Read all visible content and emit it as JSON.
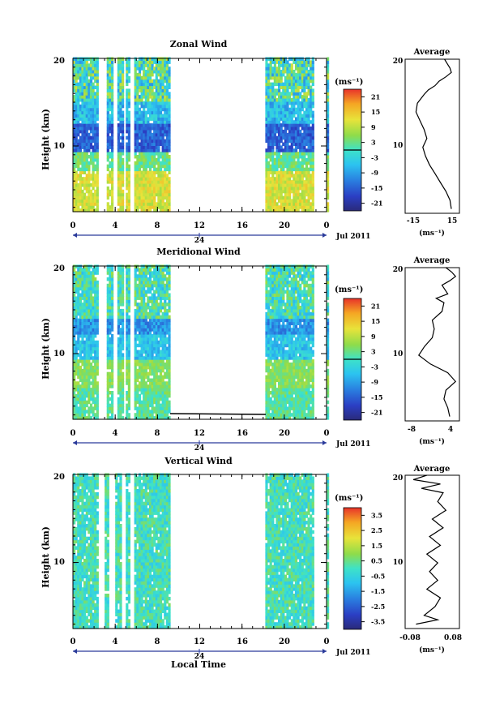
{
  "chart_data": [
    {
      "type": "heatmap",
      "title": "Zonal Wind",
      "ylabel": "Height (km)",
      "yticks": [
        "20",
        "10"
      ],
      "ylim": [
        2.5,
        20
      ],
      "xlim": [
        0,
        24
      ],
      "xticks": [
        "0",
        "4",
        "8",
        "12",
        "16",
        "20",
        "0"
      ],
      "day_label": "24",
      "date_label": "Jul 2011",
      "data_gaps_hours": [
        [
          2.4,
          3.3
        ],
        [
          3.8,
          4.2
        ],
        [
          4.8,
          5.1
        ],
        [
          5.4,
          5.9
        ],
        [
          9.2,
          18.2
        ],
        [
          22.8,
          24
        ]
      ],
      "colorbar": {
        "unit": "(ms⁻¹)",
        "ticks": [
          "21",
          "15",
          "9",
          "3",
          "-3",
          "-9",
          "-15",
          "-21"
        ],
        "range": [
          -24,
          24
        ]
      },
      "average_panel": {
        "title": "Average",
        "xlabel": "(ms⁻¹)",
        "xticks": [
          "-15",
          "15"
        ],
        "xlim": [
          -20,
          20
        ],
        "yticks": [
          "20",
          "10"
        ],
        "profile": [
          {
            "h": 3.0,
            "v": 14
          },
          {
            "h": 4.0,
            "v": 13
          },
          {
            "h": 5.0,
            "v": 10
          },
          {
            "h": 6.0,
            "v": 6
          },
          {
            "h": 7.0,
            "v": 2
          },
          {
            "h": 8.0,
            "v": -2
          },
          {
            "h": 9.0,
            "v": -5
          },
          {
            "h": 10.0,
            "v": -7
          },
          {
            "h": 11.0,
            "v": -4
          },
          {
            "h": 12.0,
            "v": -6
          },
          {
            "h": 13.0,
            "v": -9
          },
          {
            "h": 14.0,
            "v": -12
          },
          {
            "h": 15.0,
            "v": -11
          },
          {
            "h": 16.0,
            "v": -6
          },
          {
            "h": 16.5,
            "v": -3
          },
          {
            "h": 17.0,
            "v": 2
          },
          {
            "h": 17.5,
            "v": 5
          },
          {
            "h": 18.0,
            "v": 10
          },
          {
            "h": 18.5,
            "v": 14
          },
          {
            "h": 19.0,
            "v": 13
          },
          {
            "h": 19.5,
            "v": 11
          },
          {
            "h": 20.0,
            "v": 9
          }
        ]
      }
    },
    {
      "type": "heatmap",
      "title": "Meridional Wind",
      "ylabel": "Height (km)",
      "yticks": [
        "20",
        "10"
      ],
      "ylim": [
        2.5,
        20
      ],
      "xlim": [
        0,
        24
      ],
      "xticks": [
        "0",
        "4",
        "8",
        "12",
        "16",
        "20",
        "0"
      ],
      "day_label": "24",
      "date_label": "Jul 2011",
      "data_gaps_hours": [
        [
          2.4,
          3.3
        ],
        [
          3.8,
          4.2
        ],
        [
          4.8,
          5.1
        ],
        [
          5.4,
          5.9
        ],
        [
          9.2,
          18.2
        ],
        [
          22.8,
          24
        ]
      ],
      "colorbar": {
        "unit": "(ms⁻¹)",
        "ticks": [
          "21",
          "15",
          "9",
          "3",
          "-3",
          "-9",
          "-15",
          "-21"
        ],
        "range": [
          -24,
          24
        ]
      },
      "average_panel": {
        "title": "Average",
        "xlabel": "(ms⁻¹)",
        "xticks": [
          "-8",
          "4"
        ],
        "xlim": [
          -9,
          5
        ],
        "yticks": [
          "20",
          "10"
        ],
        "profile": [
          {
            "h": 3.0,
            "v": 2.5
          },
          {
            "h": 4.0,
            "v": 2.0
          },
          {
            "h": 5.0,
            "v": 1.0
          },
          {
            "h": 6.0,
            "v": 1.5
          },
          {
            "h": 7.0,
            "v": 4.0
          },
          {
            "h": 8.0,
            "v": 2.0
          },
          {
            "h": 9.0,
            "v": -2.5
          },
          {
            "h": 10.0,
            "v": -5.5
          },
          {
            "h": 11.0,
            "v": -4.0
          },
          {
            "h": 12.0,
            "v": -2.0
          },
          {
            "h": 13.0,
            "v": -1.5
          },
          {
            "h": 14.0,
            "v": -2.0
          },
          {
            "h": 15.0,
            "v": 0.5
          },
          {
            "h": 16.0,
            "v": 1.0
          },
          {
            "h": 16.5,
            "v": -1.0
          },
          {
            "h": 17.0,
            "v": 2.0
          },
          {
            "h": 18.0,
            "v": 0.5
          },
          {
            "h": 18.5,
            "v": 2.5
          },
          {
            "h": 19.0,
            "v": 4.0
          },
          {
            "h": 19.5,
            "v": 3.0
          },
          {
            "h": 20.0,
            "v": 1.5
          }
        ]
      }
    },
    {
      "type": "heatmap",
      "title": "Vertical Wind",
      "ylabel": "Height (km)",
      "xlabel": "Local Time",
      "yticks": [
        "20",
        "10"
      ],
      "ylim": [
        2.5,
        20
      ],
      "xlim": [
        0,
        24
      ],
      "xticks": [
        "0",
        "4",
        "8",
        "12",
        "16",
        "20",
        "0"
      ],
      "day_label": "24",
      "date_label": "Jul 2011",
      "data_gaps_hours": [
        [
          2.4,
          3.0
        ],
        [
          3.4,
          4.0
        ],
        [
          4.6,
          5.0
        ],
        [
          5.4,
          5.9
        ],
        [
          9.2,
          18.2
        ],
        [
          22.8,
          24
        ]
      ],
      "colorbar": {
        "unit": "(ms⁻¹)",
        "ticks": [
          "3.5",
          "2.5",
          "1.5",
          "0.5",
          "-0.5",
          "-1.5",
          "-2.5",
          "-3.5"
        ],
        "range": [
          -4,
          4
        ]
      },
      "average_panel": {
        "title": "Average",
        "xlabel": "(ms⁻¹)",
        "xticks": [
          "-0.08",
          "0.08"
        ],
        "xlim": [
          -0.1,
          0.1
        ],
        "yticks": [
          "20",
          "10"
        ],
        "profile": [
          {
            "h": 3.0,
            "v": -0.06
          },
          {
            "h": 3.5,
            "v": 0.02
          },
          {
            "h": 4.0,
            "v": -0.03
          },
          {
            "h": 5.0,
            "v": 0.01
          },
          {
            "h": 6.0,
            "v": 0.03
          },
          {
            "h": 7.0,
            "v": -0.02
          },
          {
            "h": 8.0,
            "v": 0.02
          },
          {
            "h": 9.0,
            "v": -0.01
          },
          {
            "h": 10.0,
            "v": 0.02
          },
          {
            "h": 11.0,
            "v": -0.02
          },
          {
            "h": 12.0,
            "v": 0.03
          },
          {
            "h": 13.0,
            "v": -0.01
          },
          {
            "h": 14.0,
            "v": 0.04
          },
          {
            "h": 15.0,
            "v": 0.0
          },
          {
            "h": 16.0,
            "v": 0.05
          },
          {
            "h": 17.0,
            "v": 0.02
          },
          {
            "h": 18.0,
            "v": 0.04
          },
          {
            "h": 18.5,
            "v": -0.04
          },
          {
            "h": 19.0,
            "v": 0.03
          },
          {
            "h": 19.5,
            "v": -0.07
          },
          {
            "h": 20.0,
            "v": -0.02
          }
        ]
      }
    }
  ]
}
